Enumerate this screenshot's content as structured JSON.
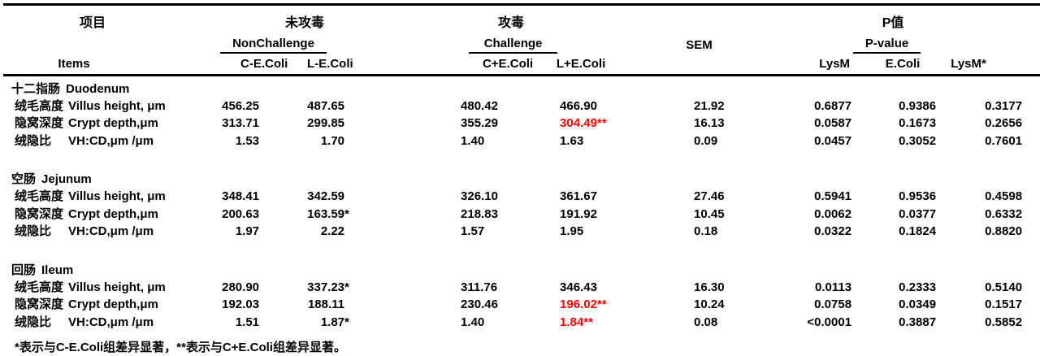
{
  "colors": {
    "accent_red": "#ff0000",
    "text": "#000000",
    "background": "#ffffff",
    "rule": "#000000"
  },
  "header": {
    "item_zh": "项目",
    "item_en": "Items",
    "group1_zh": "未攻毒",
    "group1_en": "NonChallenge",
    "g1c1": "C-E.Coli",
    "g1c2": "L-E.Coli",
    "group2_zh": "攻毒",
    "group2_en": "Challenge",
    "g2c1": "C+E.Coli",
    "g2c2": "L+E.Coli",
    "sem": "SEM",
    "group3_zh": "P值",
    "group3_en": "P-value",
    "g3c1": "LysM",
    "g3c2": "E.Coli",
    "g3c3": "LysM*"
  },
  "table": {
    "column_keys": [
      "c_minus_ecoli",
      "l_minus_ecoli",
      "c_plus_ecoli",
      "l_plus_ecoli",
      "sem",
      "p_lysm",
      "p_ecoli",
      "p_lysm_interaction"
    ],
    "sections": [
      {
        "zh": "十二指肠",
        "en": "Duodenum",
        "rows": [
          {
            "zh": "绒毛高度",
            "en": "Villus height, μm",
            "cells": [
              "456.25",
              "487.65",
              "480.42",
              "466.90",
              "21.92",
              "0.6877",
              "0.9386",
              "0.3177"
            ]
          },
          {
            "zh": "隐窝深度",
            "en": "Crypt depth,μm",
            "cells": [
              "313.71",
              "299.85",
              "355.29",
              {
                "t": "304.49**",
                "red": true
              },
              "16.13",
              "0.0587",
              "0.1673",
              "0.2656"
            ]
          },
          {
            "zh": "绒隐比",
            "en": "VH:CD,μm /μm",
            "cells": [
              "1.53",
              "1.70",
              "1.40",
              "1.63",
              "0.09",
              "0.0457",
              "0.3052",
              "0.7601"
            ]
          }
        ]
      },
      {
        "zh": "空肠",
        "en": "Jejunum",
        "rows": [
          {
            "zh": "绒毛高度",
            "en": "Villus height, μm",
            "cells": [
              "348.41",
              "342.59",
              "326.10",
              "361.67",
              "27.46",
              "0.5941",
              "0.9536",
              "0.4598"
            ]
          },
          {
            "zh": "隐窝深度",
            "en": "Crypt depth,μm",
            "cells": [
              "200.63",
              "163.59*",
              "218.83",
              "191.92",
              "10.45",
              "0.0062",
              "0.0377",
              "0.6332"
            ]
          },
          {
            "zh": "绒隐比",
            "en": "VH:CD,μm /μm",
            "cells": [
              "1.97",
              "2.22",
              "1.57",
              "1.95",
              "0.18",
              "0.0322",
              "0.1824",
              "0.8820"
            ]
          }
        ]
      },
      {
        "zh": "回肠",
        "en": "Ileum",
        "rows": [
          {
            "zh": "绒毛高度",
            "en": "Villus height, μm",
            "cells": [
              "280.90",
              "337.23*",
              "311.76",
              "346.43",
              "16.30",
              "0.0113",
              "0.2333",
              "0.5140"
            ]
          },
          {
            "zh": "隐窝深度",
            "en": "Crypt depth,μm",
            "cells": [
              "192.03",
              "188.11",
              "230.46",
              {
                "t": "196.02**",
                "red": true
              },
              "10.24",
              "0.0758",
              "0.0349",
              "0.1517"
            ]
          },
          {
            "zh": "绒隐比",
            "en": "VH:CD,μm /μm",
            "cells": [
              "1.51",
              "1.87*",
              "1.40",
              {
                "t": "1.84**",
                "red": true
              },
              "0.08",
              "<0.0001",
              "0.3887",
              "0.5852"
            ]
          }
        ]
      }
    ]
  },
  "footnote": "*表示与C-E.Coli组差异显著，**表示与C+E.Coli组差异显著。"
}
